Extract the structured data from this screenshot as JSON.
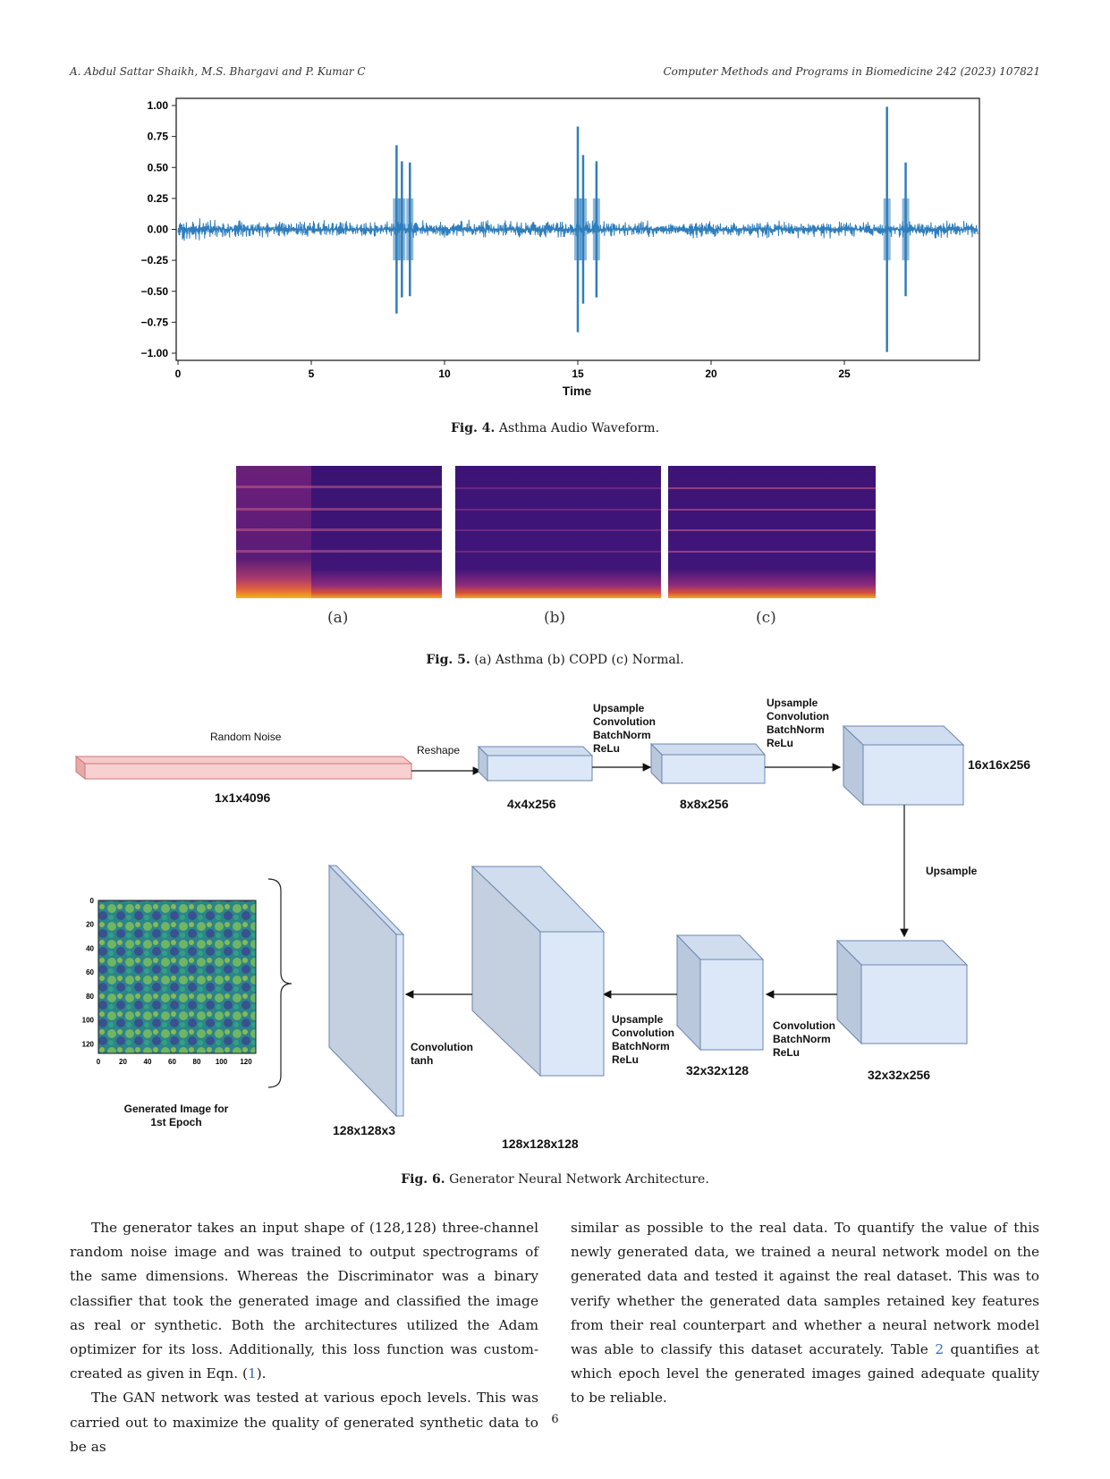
{
  "header": {
    "authors": "A. Abdul Sattar Shaikh, M.S. Bhargavi and P. Kumar C",
    "journal": "Computer Methods and Programs in Biomedicine 242 (2023) 107821"
  },
  "fig4": {
    "label": "Fig. 4.",
    "caption": "Asthma Audio Waveform.",
    "chart_data": {
      "type": "line",
      "title": "",
      "xlabel": "Time",
      "ylabel": "",
      "xlim": [
        0,
        30
      ],
      "ylim": [
        -1.0,
        1.0
      ],
      "x_ticks": [
        "0",
        "5",
        "10",
        "15",
        "20",
        "25"
      ],
      "y_ticks": [
        "1.00",
        "0.75",
        "0.50",
        "0.25",
        "0.00",
        "−0.25",
        "−0.50",
        "−0.75",
        "−1.00"
      ],
      "bursts": [
        {
          "t": 8.2,
          "peak": 0.68
        },
        {
          "t": 8.4,
          "peak": 0.55
        },
        {
          "t": 8.7,
          "peak": 0.54
        },
        {
          "t": 15.0,
          "peak": 0.83
        },
        {
          "t": 15.2,
          "peak": 0.6
        },
        {
          "t": 15.7,
          "peak": 0.55
        },
        {
          "t": 26.6,
          "peak": 0.99
        },
        {
          "t": 27.3,
          "peak": 0.54
        }
      ],
      "baseline_amplitude": 0.06,
      "color": "#2f7ebc"
    }
  },
  "fig5": {
    "label": "Fig. 5.",
    "caption": "(a) Asthma (b) COPD (c) Normal.",
    "panels": [
      "(a)",
      "(b)",
      "(c)"
    ]
  },
  "fig6": {
    "label": "Fig. 6.",
    "caption": "Generator Neural Network Architecture.",
    "nodes": {
      "random_noise": "Random Noise",
      "noise_dim": "1x1x4096",
      "reshape": "Reshape",
      "b1_dim": "4x4x256",
      "op1": "Upsample\nConvolution\nBatchNorm\nReLu",
      "b2_dim": "8x8x256",
      "op2": "Upsample\nConvolution\nBatchNorm\nReLu",
      "b3_dim": "16x16x256",
      "upsample": "Upsample",
      "b4_dim": "32x32x256",
      "op4": "Convolution\nBatchNorm\nReLu",
      "b5_dim": "32x32x128",
      "op5": "Upsample\nConvolution\nBatchNorm\nReLu",
      "b6_dim": "128x128x128",
      "op6": "Convolution\ntanh",
      "b7_dim": "128x128x3",
      "gen_caption": "Generated Image for\n1st Epoch",
      "gen_yticks": [
        "0",
        "20",
        "40",
        "60",
        "80",
        "100",
        "120"
      ],
      "gen_xticks": [
        "0",
        "20",
        "40",
        "60",
        "80",
        "100",
        "120"
      ]
    }
  },
  "body": {
    "left_p1": "The generator takes an input shape of (128,128) three-channel random noise image and was trained to output spectrograms of the same dimensions. Whereas the Discriminator was a binary classifier that took the generated image and classified the image as real or synthetic. Both the architectures utilized the Adam optimizer for its loss. Additionally, this loss function was custom-created as given in Eqn. (",
    "left_p1_ref": "1",
    "left_p1_end": ").",
    "left_p2": "The GAN network was tested at various epoch levels. This was carried out to maximize the quality of generated synthetic data to be as",
    "right_p1a": "similar as possible to the real data. To quantify the value of this newly generated data, we trained a neural network model on the generated data and tested it against the real dataset. This was to verify whether the generated data samples retained key features from their real counterpart and whether a neural network model was able to classify this dataset accurately. Table ",
    "right_ref": "2",
    "right_p1b": " quantifies at which epoch level the generated images gained adequate quality to be reliable."
  },
  "page_number": "6"
}
